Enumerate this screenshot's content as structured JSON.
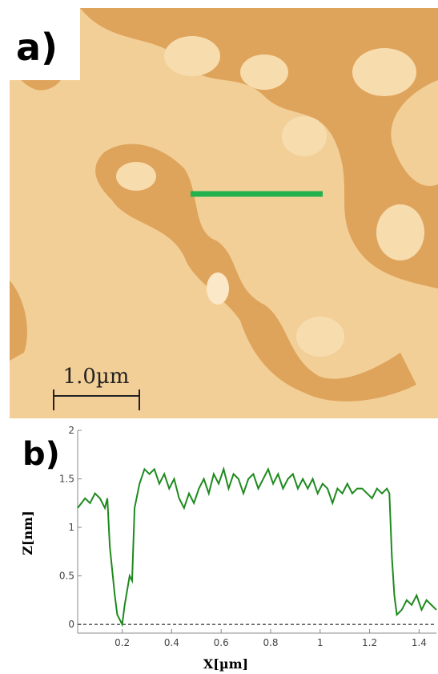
{
  "panel_a": {
    "label": "a)",
    "scale_bar": "1.0µm"
  },
  "chart_data": {
    "type": "line",
    "panel_label": "b)",
    "x_label": "X[µm]",
    "y_label": "Z[nm]",
    "x": [
      0.02,
      0.05,
      0.07,
      0.09,
      0.11,
      0.13,
      0.14,
      0.15,
      0.17,
      0.18,
      0.19,
      0.2,
      0.21,
      0.23,
      0.24,
      0.25,
      0.27,
      0.29,
      0.31,
      0.33,
      0.35,
      0.37,
      0.39,
      0.41,
      0.43,
      0.45,
      0.47,
      0.49,
      0.51,
      0.53,
      0.55,
      0.57,
      0.59,
      0.61,
      0.63,
      0.65,
      0.67,
      0.69,
      0.71,
      0.73,
      0.75,
      0.77,
      0.79,
      0.81,
      0.83,
      0.85,
      0.87,
      0.89,
      0.91,
      0.93,
      0.95,
      0.97,
      0.99,
      1.01,
      1.03,
      1.05,
      1.07,
      1.09,
      1.11,
      1.13,
      1.15,
      1.17,
      1.19,
      1.21,
      1.23,
      1.25,
      1.27,
      1.28,
      1.29,
      1.3,
      1.31,
      1.33,
      1.35,
      1.37,
      1.39,
      1.41,
      1.43,
      1.45,
      1.47
    ],
    "values": [
      1.2,
      1.3,
      1.25,
      1.35,
      1.3,
      1.2,
      1.3,
      0.8,
      0.3,
      0.1,
      0.05,
      0.0,
      0.2,
      0.5,
      0.45,
      1.2,
      1.45,
      1.6,
      1.55,
      1.6,
      1.45,
      1.55,
      1.4,
      1.5,
      1.3,
      1.2,
      1.35,
      1.25,
      1.4,
      1.5,
      1.35,
      1.55,
      1.45,
      1.6,
      1.4,
      1.55,
      1.5,
      1.35,
      1.5,
      1.55,
      1.4,
      1.5,
      1.6,
      1.45,
      1.55,
      1.4,
      1.5,
      1.55,
      1.4,
      1.5,
      1.4,
      1.5,
      1.35,
      1.45,
      1.4,
      1.25,
      1.4,
      1.35,
      1.45,
      1.35,
      1.4,
      1.4,
      1.35,
      1.3,
      1.4,
      1.35,
      1.4,
      1.35,
      0.7,
      0.3,
      0.1,
      0.15,
      0.25,
      0.2,
      0.3,
      0.15,
      0.25,
      0.2,
      0.15
    ],
    "color": "#1e8a1e",
    "xlim": [
      0.02,
      1.47
    ],
    "xticks": [
      0.2,
      0.4,
      0.6,
      0.8,
      1,
      1.2,
      1.4
    ],
    "ylim": [
      -0.09,
      2
    ],
    "yticks": [
      0,
      0.5,
      1,
      1.5,
      2
    ],
    "reference_line": 0
  }
}
